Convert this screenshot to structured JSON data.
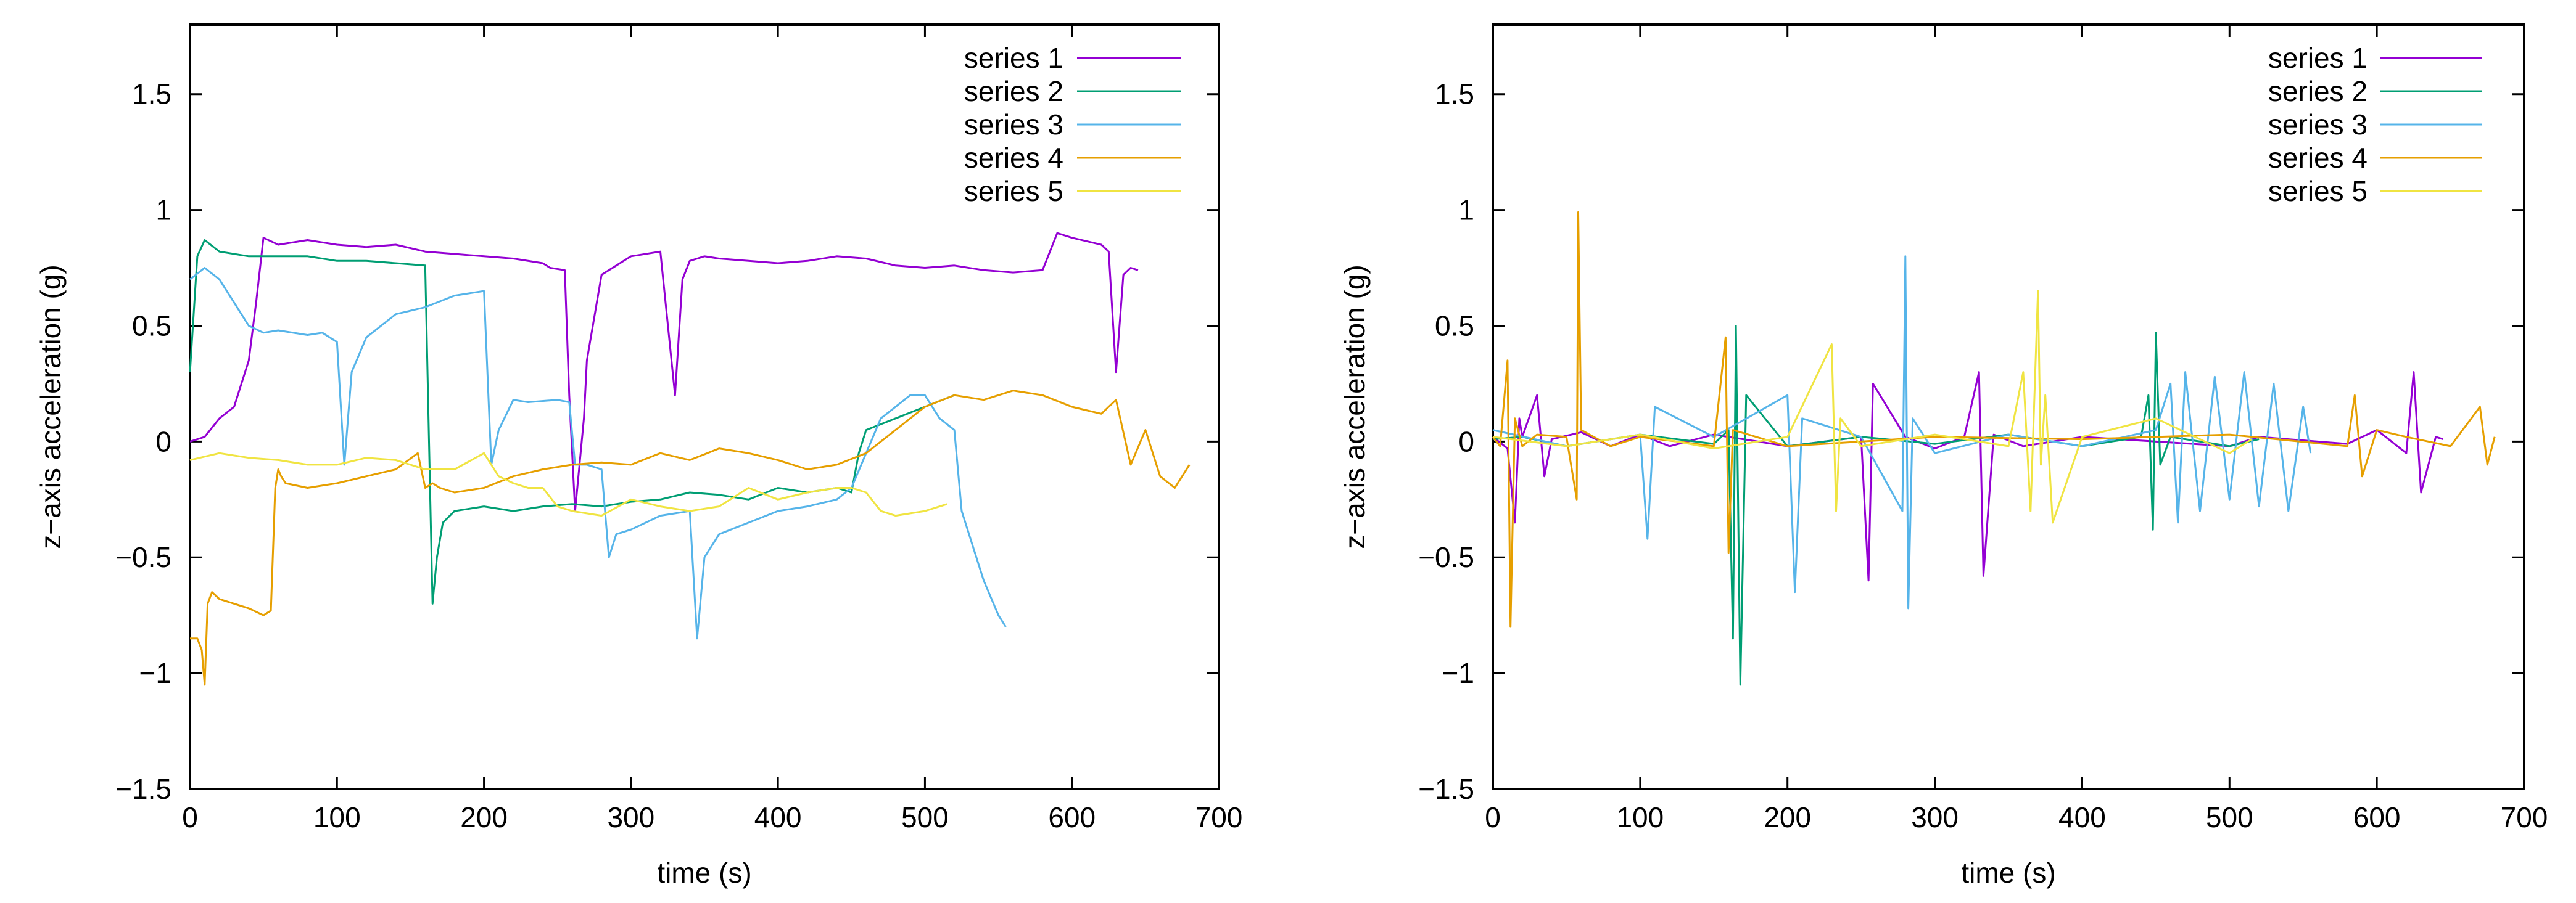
{
  "chart_data": [
    {
      "type": "line",
      "title": "",
      "xlabel": "time (s)",
      "ylabel": "z−axis acceleration (g)",
      "xlim": [
        0,
        700
      ],
      "ylim": [
        -1.5,
        1.8
      ],
      "xticks": [
        0,
        100,
        200,
        300,
        400,
        500,
        600,
        700
      ],
      "xtick_labels": [
        "0",
        "100",
        "200",
        "300",
        "400",
        "500",
        "600",
        "700"
      ],
      "yticks": [
        -1.5,
        -1,
        -0.5,
        0,
        0.5,
        1,
        1.5
      ],
      "ytick_labels": [
        "−1.5",
        "−1",
        "−0.5",
        "0",
        "0.5",
        "1",
        "1.5"
      ],
      "legend_position": "top-right",
      "series": [
        {
          "name": "series 1",
          "color": "#9400d3",
          "x": [
            0,
            10,
            20,
            30,
            40,
            45,
            50,
            60,
            80,
            100,
            120,
            140,
            160,
            180,
            200,
            220,
            240,
            245,
            255,
            258,
            262,
            268,
            270,
            280,
            290,
            300,
            320,
            330,
            335,
            340,
            350,
            360,
            380,
            400,
            420,
            440,
            460,
            480,
            500,
            520,
            540,
            560,
            580,
            590,
            600,
            620,
            625,
            630,
            635,
            640,
            645
          ],
          "y": [
            0,
            0.02,
            0.1,
            0.15,
            0.35,
            0.6,
            0.88,
            0.85,
            0.87,
            0.85,
            0.84,
            0.85,
            0.82,
            0.81,
            0.8,
            0.79,
            0.77,
            0.75,
            0.74,
            0.2,
            -0.3,
            0.1,
            0.35,
            0.72,
            0.76,
            0.8,
            0.82,
            0.2,
            0.7,
            0.78,
            0.8,
            0.79,
            0.78,
            0.77,
            0.78,
            0.8,
            0.79,
            0.76,
            0.75,
            0.76,
            0.74,
            0.73,
            0.74,
            0.9,
            0.88,
            0.85,
            0.82,
            0.3,
            0.72,
            0.75,
            0.74
          ]
        },
        {
          "name": "series 2",
          "color": "#009e73",
          "x": [
            0,
            5,
            10,
            20,
            40,
            60,
            80,
            100,
            120,
            140,
            160,
            165,
            168,
            172,
            180,
            200,
            220,
            240,
            260,
            280,
            300,
            320,
            340,
            360,
            380,
            400,
            420,
            440,
            450,
            455,
            460,
            480,
            500,
            520
          ],
          "y": [
            0.3,
            0.8,
            0.87,
            0.82,
            0.8,
            0.8,
            0.8,
            0.78,
            0.78,
            0.77,
            0.76,
            -0.7,
            -0.5,
            -0.35,
            -0.3,
            -0.28,
            -0.3,
            -0.28,
            -0.27,
            -0.28,
            -0.26,
            -0.25,
            -0.22,
            -0.23,
            -0.25,
            -0.2,
            -0.22,
            -0.2,
            -0.22,
            -0.05,
            0.05,
            0.1,
            0.15,
            0.2
          ]
        },
        {
          "name": "series 3",
          "color": "#56b4e9",
          "x": [
            0,
            10,
            20,
            30,
            40,
            50,
            60,
            80,
            90,
            100,
            105,
            110,
            120,
            140,
            160,
            180,
            200,
            205,
            210,
            220,
            230,
            250,
            258,
            262,
            270,
            280,
            285,
            290,
            300,
            320,
            340,
            345,
            350,
            360,
            380,
            400,
            420,
            440,
            450,
            460,
            470,
            480,
            490,
            500,
            510,
            520,
            525,
            530,
            540,
            550,
            555
          ],
          "y": [
            0.7,
            0.75,
            0.7,
            0.6,
            0.5,
            0.47,
            0.48,
            0.46,
            0.47,
            0.43,
            -0.1,
            0.3,
            0.45,
            0.55,
            0.58,
            0.63,
            0.65,
            -0.1,
            0.05,
            0.18,
            0.17,
            0.18,
            0.17,
            -0.1,
            -0.1,
            -0.12,
            -0.5,
            -0.4,
            -0.38,
            -0.32,
            -0.3,
            -0.85,
            -0.5,
            -0.4,
            -0.35,
            -0.3,
            -0.28,
            -0.25,
            -0.2,
            -0.05,
            0.1,
            0.15,
            0.2,
            0.2,
            0.1,
            0.05,
            -0.3,
            -0.4,
            -0.6,
            -0.75,
            -0.8
          ]
        },
        {
          "name": "series 4",
          "color": "#e69f00",
          "x": [
            0,
            5,
            8,
            10,
            12,
            15,
            20,
            30,
            40,
            50,
            55,
            58,
            60,
            62,
            65,
            80,
            100,
            120,
            140,
            155,
            160,
            165,
            170,
            180,
            200,
            220,
            240,
            260,
            280,
            300,
            320,
            340,
            360,
            380,
            400,
            420,
            440,
            460,
            480,
            500,
            520,
            540,
            560,
            580,
            600,
            620,
            630,
            640,
            650,
            660,
            670,
            680
          ],
          "y": [
            -0.85,
            -0.85,
            -0.9,
            -1.05,
            -0.7,
            -0.65,
            -0.68,
            -0.7,
            -0.72,
            -0.75,
            -0.73,
            -0.2,
            -0.12,
            -0.15,
            -0.18,
            -0.2,
            -0.18,
            -0.15,
            -0.12,
            -0.05,
            -0.2,
            -0.18,
            -0.2,
            -0.22,
            -0.2,
            -0.15,
            -0.12,
            -0.1,
            -0.09,
            -0.1,
            -0.05,
            -0.08,
            -0.03,
            -0.05,
            -0.08,
            -0.12,
            -0.1,
            -0.05,
            0.05,
            0.15,
            0.2,
            0.18,
            0.22,
            0.2,
            0.15,
            0.12,
            0.18,
            -0.1,
            0.05,
            -0.15,
            -0.2,
            -0.1
          ]
        },
        {
          "name": "series 5",
          "color": "#f0e442",
          "x": [
            0,
            20,
            40,
            60,
            80,
            100,
            120,
            140,
            160,
            180,
            200,
            210,
            220,
            230,
            240,
            250,
            260,
            280,
            300,
            320,
            340,
            360,
            380,
            400,
            420,
            440,
            450,
            460,
            470,
            480,
            500,
            510,
            515
          ],
          "y": [
            -0.08,
            -0.05,
            -0.07,
            -0.08,
            -0.1,
            -0.1,
            -0.07,
            -0.08,
            -0.12,
            -0.12,
            -0.05,
            -0.15,
            -0.18,
            -0.2,
            -0.2,
            -0.28,
            -0.3,
            -0.32,
            -0.25,
            -0.28,
            -0.3,
            -0.28,
            -0.2,
            -0.25,
            -0.22,
            -0.2,
            -0.2,
            -0.22,
            -0.3,
            -0.32,
            -0.3,
            -0.28,
            -0.27
          ]
        }
      ]
    },
    {
      "type": "line",
      "title": "",
      "xlabel": "time (s)",
      "ylabel": "z−axis acceleration (g)",
      "xlim": [
        0,
        700
      ],
      "ylim": [
        -1.5,
        1.8
      ],
      "xticks": [
        0,
        100,
        200,
        300,
        400,
        500,
        600,
        700
      ],
      "xtick_labels": [
        "0",
        "100",
        "200",
        "300",
        "400",
        "500",
        "600",
        "700"
      ],
      "yticks": [
        -1.5,
        -1,
        -0.5,
        0,
        0.5,
        1,
        1.5
      ],
      "ytick_labels": [
        "−1.5",
        "−1",
        "−0.5",
        "0",
        "0.5",
        "1",
        "1.5"
      ],
      "legend_position": "top-right",
      "series": [
        {
          "name": "series 1",
          "color": "#9400d3",
          "x": [
            0,
            10,
            15,
            18,
            20,
            30,
            35,
            40,
            60,
            80,
            100,
            120,
            150,
            200,
            250,
            255,
            258,
            280,
            300,
            320,
            330,
            333,
            340,
            360,
            400,
            500,
            520,
            580,
            600,
            620,
            625,
            630,
            640,
            645
          ],
          "y": [
            0.02,
            -0.03,
            -0.35,
            0.1,
            0.02,
            0.2,
            -0.15,
            0.01,
            0.04,
            -0.02,
            0.03,
            -0.02,
            0.03,
            -0.02,
            0.02,
            -0.6,
            0.25,
            0.02,
            -0.03,
            0.02,
            0.3,
            -0.58,
            0.03,
            -0.02,
            0.02,
            -0.02,
            0.02,
            -0.01,
            0.05,
            -0.05,
            0.3,
            -0.22,
            0.02,
            0.01
          ]
        },
        {
          "name": "series 2",
          "color": "#009e73",
          "x": [
            0,
            20,
            50,
            100,
            150,
            160,
            163,
            165,
            168,
            172,
            200,
            250,
            300,
            350,
            400,
            440,
            445,
            448,
            450,
            453,
            460,
            500,
            520
          ],
          "y": [
            0.01,
            0.02,
            -0.02,
            0.03,
            -0.01,
            0.05,
            -0.85,
            0.5,
            -1.05,
            0.2,
            -0.02,
            0.02,
            -0.01,
            0.03,
            -0.02,
            0.02,
            0.2,
            -0.38,
            0.47,
            -0.1,
            0.02,
            -0.02,
            0.01
          ]
        },
        {
          "name": "series 3",
          "color": "#56b4e9",
          "x": [
            0,
            50,
            100,
            105,
            110,
            150,
            200,
            205,
            210,
            250,
            278,
            280,
            282,
            285,
            300,
            350,
            400,
            450,
            460,
            465,
            470,
            480,
            490,
            500,
            510,
            520,
            530,
            540,
            550,
            555
          ],
          "y": [
            0.05,
            -0.02,
            0.03,
            -0.42,
            0.15,
            0.02,
            0.2,
            -0.65,
            0.1,
            0.02,
            -0.3,
            0.8,
            -0.72,
            0.1,
            -0.05,
            0.03,
            -0.02,
            0.05,
            0.25,
            -0.35,
            0.3,
            -0.3,
            0.28,
            -0.25,
            0.3,
            -0.28,
            0.25,
            -0.3,
            0.15,
            -0.05
          ]
        },
        {
          "name": "series 4",
          "color": "#e69f00",
          "x": [
            0,
            5,
            10,
            12,
            15,
            20,
            30,
            50,
            57,
            58,
            60,
            80,
            100,
            150,
            158,
            160,
            163,
            200,
            300,
            400,
            500,
            580,
            585,
            590,
            600,
            620,
            650,
            670,
            675,
            680
          ],
          "y": [
            0.02,
            -0.02,
            0.35,
            -0.8,
            0.1,
            -0.02,
            0.03,
            0.02,
            -0.25,
            0.99,
            0.05,
            -0.02,
            0.02,
            -0.02,
            0.45,
            -0.48,
            0.05,
            -0.02,
            0.02,
            0.01,
            0.03,
            -0.02,
            0.2,
            -0.15,
            0.05,
            0.02,
            -0.02,
            0.15,
            -0.1,
            0.02
          ]
        },
        {
          "name": "series 5",
          "color": "#f0e442",
          "x": [
            0,
            50,
            100,
            150,
            200,
            230,
            233,
            236,
            250,
            300,
            350,
            360,
            365,
            370,
            372,
            375,
            380,
            400,
            450,
            500,
            515
          ],
          "y": [
            0.02,
            -0.02,
            0.03,
            -0.03,
            0.02,
            0.42,
            -0.3,
            0.1,
            -0.02,
            0.03,
            -0.02,
            0.3,
            -0.3,
            0.65,
            -0.1,
            0.2,
            -0.35,
            0.02,
            0.1,
            -0.05,
            0.01
          ]
        }
      ]
    }
  ]
}
